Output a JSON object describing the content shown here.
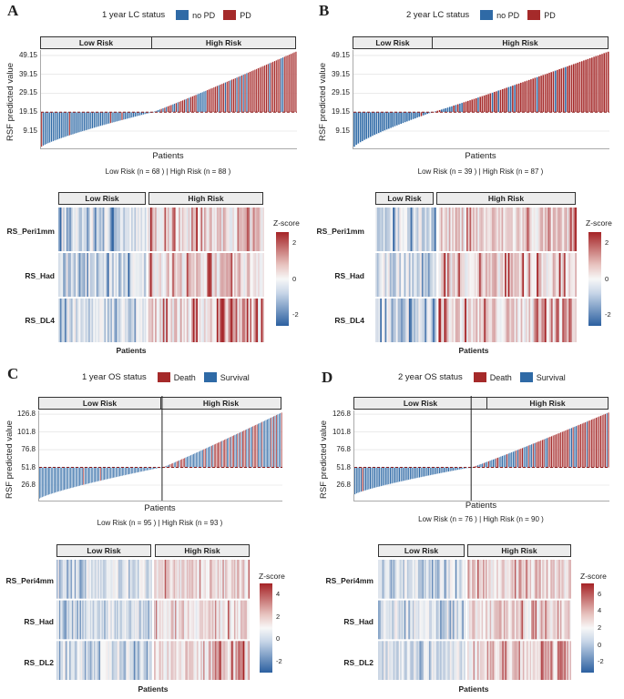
{
  "colors": {
    "blue": "#2f6aa6",
    "red": "#a52a2a",
    "dark_red": "#8b1a1a",
    "strip_bg": "#ececec",
    "grid": "#dddddd"
  },
  "panels": [
    {
      "letter": "A",
      "legend": {
        "title": "1 year LC status",
        "items": [
          {
            "label": "no PD",
            "color": "#2f6aa6"
          },
          {
            "label": "PD",
            "color": "#a52a2a"
          }
        ]
      },
      "strips": {
        "low": "Low Risk",
        "high": "High Risk"
      },
      "ylabel": "RSF predicted value",
      "xlabel": "Patients",
      "counts": "Low Risk (n = 68 ) | High Risk (n = 88 )",
      "heatmap": {
        "strips": {
          "low": "Low Risk",
          "high": "High Risk"
        },
        "rows": [
          "RS_Peri1mm",
          "RS_Had",
          "RS_DL4"
        ],
        "xlabel": "Patients",
        "zlabel": "Z-score",
        "zticks": [
          "2",
          "0",
          "-2"
        ]
      }
    },
    {
      "letter": "B",
      "legend": {
        "title": "2 year LC status",
        "items": [
          {
            "label": "no PD",
            "color": "#2f6aa6"
          },
          {
            "label": "PD",
            "color": "#a52a2a"
          }
        ]
      },
      "strips": {
        "low": "Low Risk",
        "high": "High Risk"
      },
      "ylabel": "RSF predicted value",
      "xlabel": "Patients",
      "counts": "Low Risk (n = 39 ) | High Risk (n = 87 )",
      "heatmap": {
        "strips": {
          "low": "Low Risk",
          "high": "High Risk"
        },
        "rows": [
          "RS_Peri1mm",
          "RS_Had",
          "RS_DL4"
        ],
        "xlabel": "Patients",
        "zlabel": "Z-score",
        "zticks": [
          "2",
          "0",
          "-2"
        ]
      }
    },
    {
      "letter": "C",
      "legend": {
        "title": "1 year OS status",
        "items": [
          {
            "label": "Death",
            "color": "#a52a2a"
          },
          {
            "label": "Survival",
            "color": "#2f6aa6"
          }
        ]
      },
      "strips": {
        "low": "Low Risk",
        "high": "High Risk"
      },
      "ylabel": "RSF predicted value",
      "xlabel": "Patients",
      "counts": "Low Risk (n = 95 ) | High Risk (n = 93 )",
      "heatmap": {
        "strips": {
          "low": "Low Risk",
          "high": "High Risk"
        },
        "rows": [
          "RS_Peri4mm",
          "RS_Had",
          "RS_DL2"
        ],
        "xlabel": "Patients",
        "zlabel": "Z-score",
        "zticks": [
          "4",
          "2",
          "0",
          "-2"
        ]
      }
    },
    {
      "letter": "D",
      "legend": {
        "title": "2 year OS status",
        "items": [
          {
            "label": "Death",
            "color": "#a52a2a"
          },
          {
            "label": "Survival",
            "color": "#2f6aa6"
          }
        ]
      },
      "strips": {
        "low": "Low Risk",
        "high": "High Risk"
      },
      "ylabel": "RSF predicted value",
      "xlabel": "Patients",
      "counts": "Low Risk (n = 76 ) | High Risk (n = 90 )",
      "heatmap": {
        "strips": {
          "low": "Low Risk",
          "high": "High Risk"
        },
        "rows": [
          "RS_Peri4mm",
          "RS_Had",
          "RS_DL2"
        ],
        "xlabel": "Patients",
        "zlabel": "Z-score",
        "zticks": [
          "6",
          "4",
          "2",
          "0",
          "-2"
        ]
      }
    }
  ],
  "chart_data": [
    {
      "type": "bar",
      "title": "1 year LC status",
      "ylabel": "RSF predicted value",
      "xlabel": "Patients",
      "cutoff": 19.15,
      "ylim": [
        0,
        52
      ],
      "yticks": [
        "9.15",
        "19.15",
        "29.15",
        "39.15",
        "49.15"
      ],
      "n_low": 68,
      "n_high": 88,
      "y_min": 1,
      "y_max": 51,
      "series": [
        {
          "name": "no PD"
        },
        {
          "name": "PD"
        }
      ]
    },
    {
      "type": "bar",
      "title": "2 year LC status",
      "ylabel": "RSF predicted value",
      "xlabel": "Patients",
      "cutoff": 19.15,
      "ylim": [
        0,
        52
      ],
      "yticks": [
        "9.15",
        "19.15",
        "29.15",
        "39.15",
        "49.15"
      ],
      "n_low": 39,
      "n_high": 87,
      "y_min": 1,
      "y_max": 51,
      "series": [
        {
          "name": "no PD"
        },
        {
          "name": "PD"
        }
      ]
    },
    {
      "type": "bar",
      "title": "1 year OS status",
      "ylabel": "RSF predicted value",
      "xlabel": "Patients",
      "cutoff": 51.8,
      "ylim": [
        5,
        132
      ],
      "yticks": [
        "26.8",
        "51.8",
        "76.8",
        "101.8",
        "126.8"
      ],
      "n_low": 95,
      "n_high": 93,
      "y_min": 8,
      "y_max": 129,
      "series": [
        {
          "name": "Death"
        },
        {
          "name": "Survival"
        }
      ]
    },
    {
      "type": "bar",
      "title": "2 year OS status",
      "ylabel": "RSF predicted value",
      "xlabel": "Patients",
      "cutoff": 51.8,
      "ylim": [
        5,
        132
      ],
      "yticks": [
        "26.8",
        "51.8",
        "76.8",
        "101.8",
        "126.8"
      ],
      "n_low": 76,
      "n_high": 90,
      "y_min": 14,
      "y_max": 129,
      "series": [
        {
          "name": "Death"
        },
        {
          "name": "Survival"
        }
      ]
    }
  ]
}
